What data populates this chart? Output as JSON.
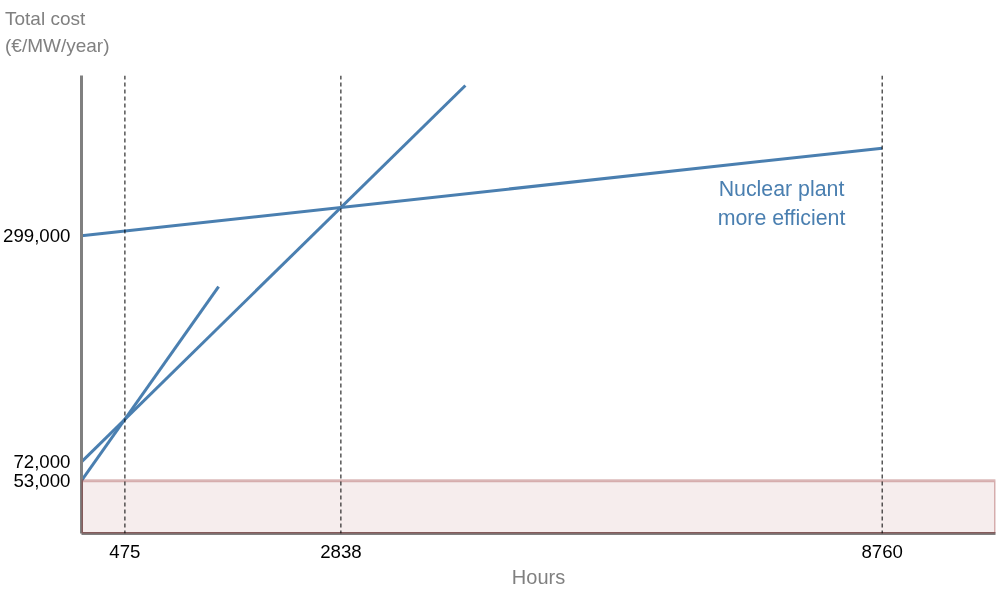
{
  "chart_data": {
    "type": "line",
    "ylabel": "Total cost (€/MW/year)",
    "xlabel": "Hours",
    "xlim": [
      0,
      10000
    ],
    "ylim": [
      0,
      460000
    ],
    "xticks": [
      475,
      2838,
      8760
    ],
    "yticks": [
      {
        "value": 53000,
        "label": "53,000"
      },
      {
        "value": 72000,
        "label": "72,000"
      },
      {
        "value": 299000,
        "label": "299,000"
      }
    ],
    "series": [
      {
        "color": "#4a7fb0",
        "x": [
          0,
          1500
        ],
        "values": [
          53000,
          248000
        ]
      },
      {
        "color": "#4a7fb0",
        "x": [
          0,
          4200
        ],
        "values": [
          72000,
          450000
        ]
      },
      {
        "color": "#4a7fb0",
        "x": [
          0,
          8760
        ],
        "values": [
          299000,
          387000
        ]
      }
    ],
    "ref_lines": [
      {
        "axis": "x",
        "value": 475,
        "line_style": "dashed",
        "color": "#000000"
      },
      {
        "axis": "x",
        "value": 2838,
        "line_style": "dashed",
        "color": "#000000"
      },
      {
        "axis": "x",
        "value": 8760,
        "line_style": "dashed",
        "color": "#000000"
      }
    ],
    "bands": [
      {
        "axis": "y",
        "from": 0,
        "to": 53000,
        "color": "#8b1a1a"
      }
    ],
    "annotations": [
      "Nuclear plant\nmore efficient"
    ],
    "grid": false,
    "marker": "none",
    "line_style": "solid"
  }
}
